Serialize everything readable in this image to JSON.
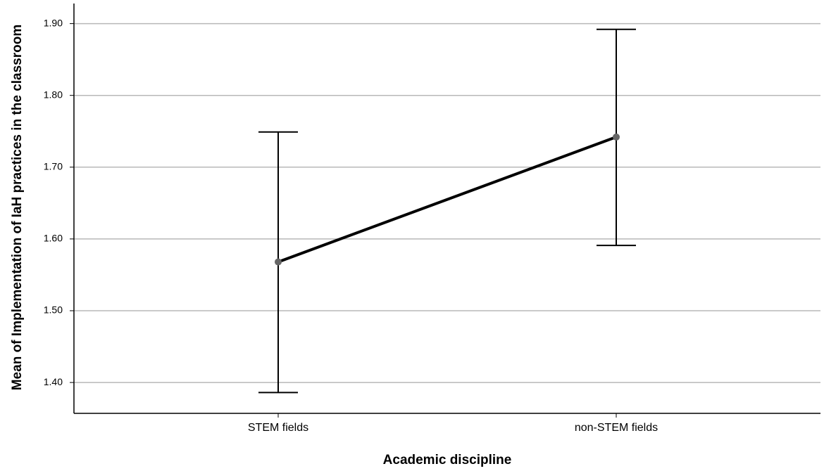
{
  "chart_data": {
    "type": "line",
    "xlabel": "Academic discipline",
    "ylabel": "Mean of Implementation of IaH practices in the classroom",
    "categories": [
      "STEM fields",
      "non-STEM fields"
    ],
    "values": [
      1.568,
      1.742
    ],
    "ci_lower": [
      1.386,
      1.591
    ],
    "ci_upper": [
      1.749,
      1.892
    ],
    "color": "#000000",
    "marker_color": "#666666",
    "ylim": [
      1.357,
      1.928
    ],
    "yticks": [
      {
        "value": 1.4,
        "label": "1.40"
      },
      {
        "value": 1.5,
        "label": "1.50"
      },
      {
        "value": 1.6,
        "label": "1.60"
      },
      {
        "value": 1.7,
        "label": "1.70"
      },
      {
        "value": 1.8,
        "label": "1.80"
      },
      {
        "value": 1.9,
        "label": "1.90"
      }
    ],
    "grid": true
  }
}
